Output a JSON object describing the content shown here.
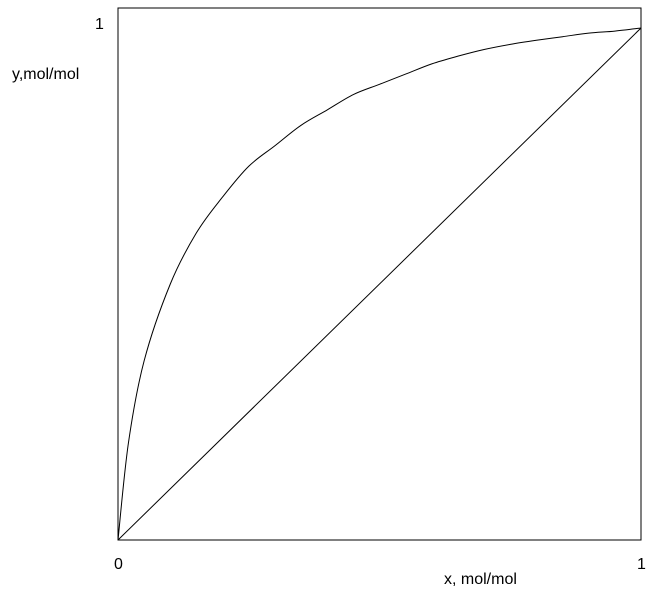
{
  "chart_data": {
    "type": "line",
    "title": "",
    "xlabel": "x, mol/mol",
    "ylabel": "y,mol/mol",
    "xlim": [
      0,
      1
    ],
    "ylim": [
      0,
      1
    ],
    "x_ticks": [
      "0",
      "1"
    ],
    "y_ticks": [
      "1"
    ],
    "grid": false,
    "legend": "none",
    "series": [
      {
        "x": [
          0,
          0.02,
          0.05,
          0.1,
          0.15,
          0.2,
          0.25,
          0.3,
          0.35,
          0.4,
          0.45,
          0.5,
          0.55,
          0.6,
          0.65,
          0.7,
          0.75,
          0.8,
          0.85,
          0.9,
          0.95,
          1.0
        ],
        "y": [
          0,
          0.19,
          0.35,
          0.5,
          0.6,
          0.67,
          0.73,
          0.77,
          0.81,
          0.84,
          0.87,
          0.89,
          0.91,
          0.93,
          0.945,
          0.958,
          0.968,
          0.976,
          0.983,
          0.99,
          0.994,
          1.0
        ]
      },
      {
        "x": [
          0,
          1
        ],
        "y": [
          0,
          1
        ]
      }
    ]
  }
}
